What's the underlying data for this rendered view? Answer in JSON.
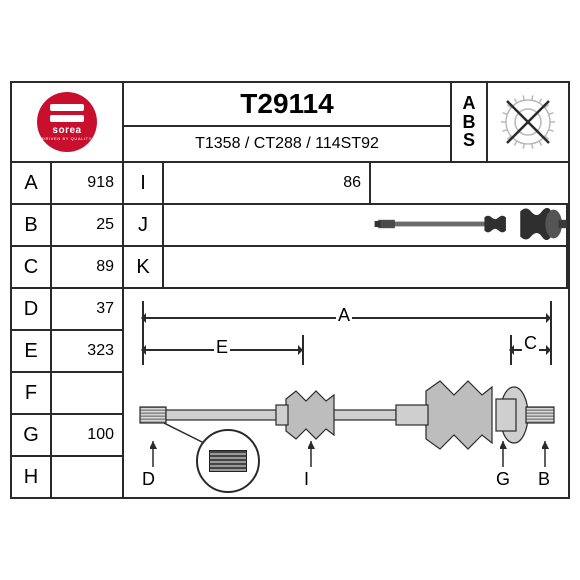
{
  "brand": {
    "name": "sorea",
    "tagline": "DRIVEN BY QUALITY",
    "badge_color": "#c8102e"
  },
  "part": {
    "number": "T29114",
    "cross_ref": "T1358 / CT288 / 114ST92"
  },
  "abs": {
    "label_a": "A",
    "label_b": "B",
    "label_s": "S",
    "present": false
  },
  "dims_left": [
    {
      "key": "A",
      "value": "918"
    },
    {
      "key": "B",
      "value": "25"
    },
    {
      "key": "C",
      "value": "89"
    },
    {
      "key": "D",
      "value": "37"
    },
    {
      "key": "E",
      "value": "323"
    },
    {
      "key": "F",
      "value": ""
    },
    {
      "key": "G",
      "value": "100"
    },
    {
      "key": "H",
      "value": ""
    }
  ],
  "dims_right": [
    {
      "key": "I",
      "value": "86"
    },
    {
      "key": "J",
      "value": ""
    },
    {
      "key": "K",
      "value": ""
    }
  ],
  "diagram_labels": {
    "A": "A",
    "E": "E",
    "C": "C",
    "D": "D",
    "I": "I",
    "G": "G",
    "B": "B"
  },
  "colors": {
    "border": "#2a2a2a",
    "background": "#ffffff",
    "shaft_dark": "#3a3a3a",
    "shaft_mid": "#6b6b6b",
    "shaft_light": "#b8b8b8"
  }
}
